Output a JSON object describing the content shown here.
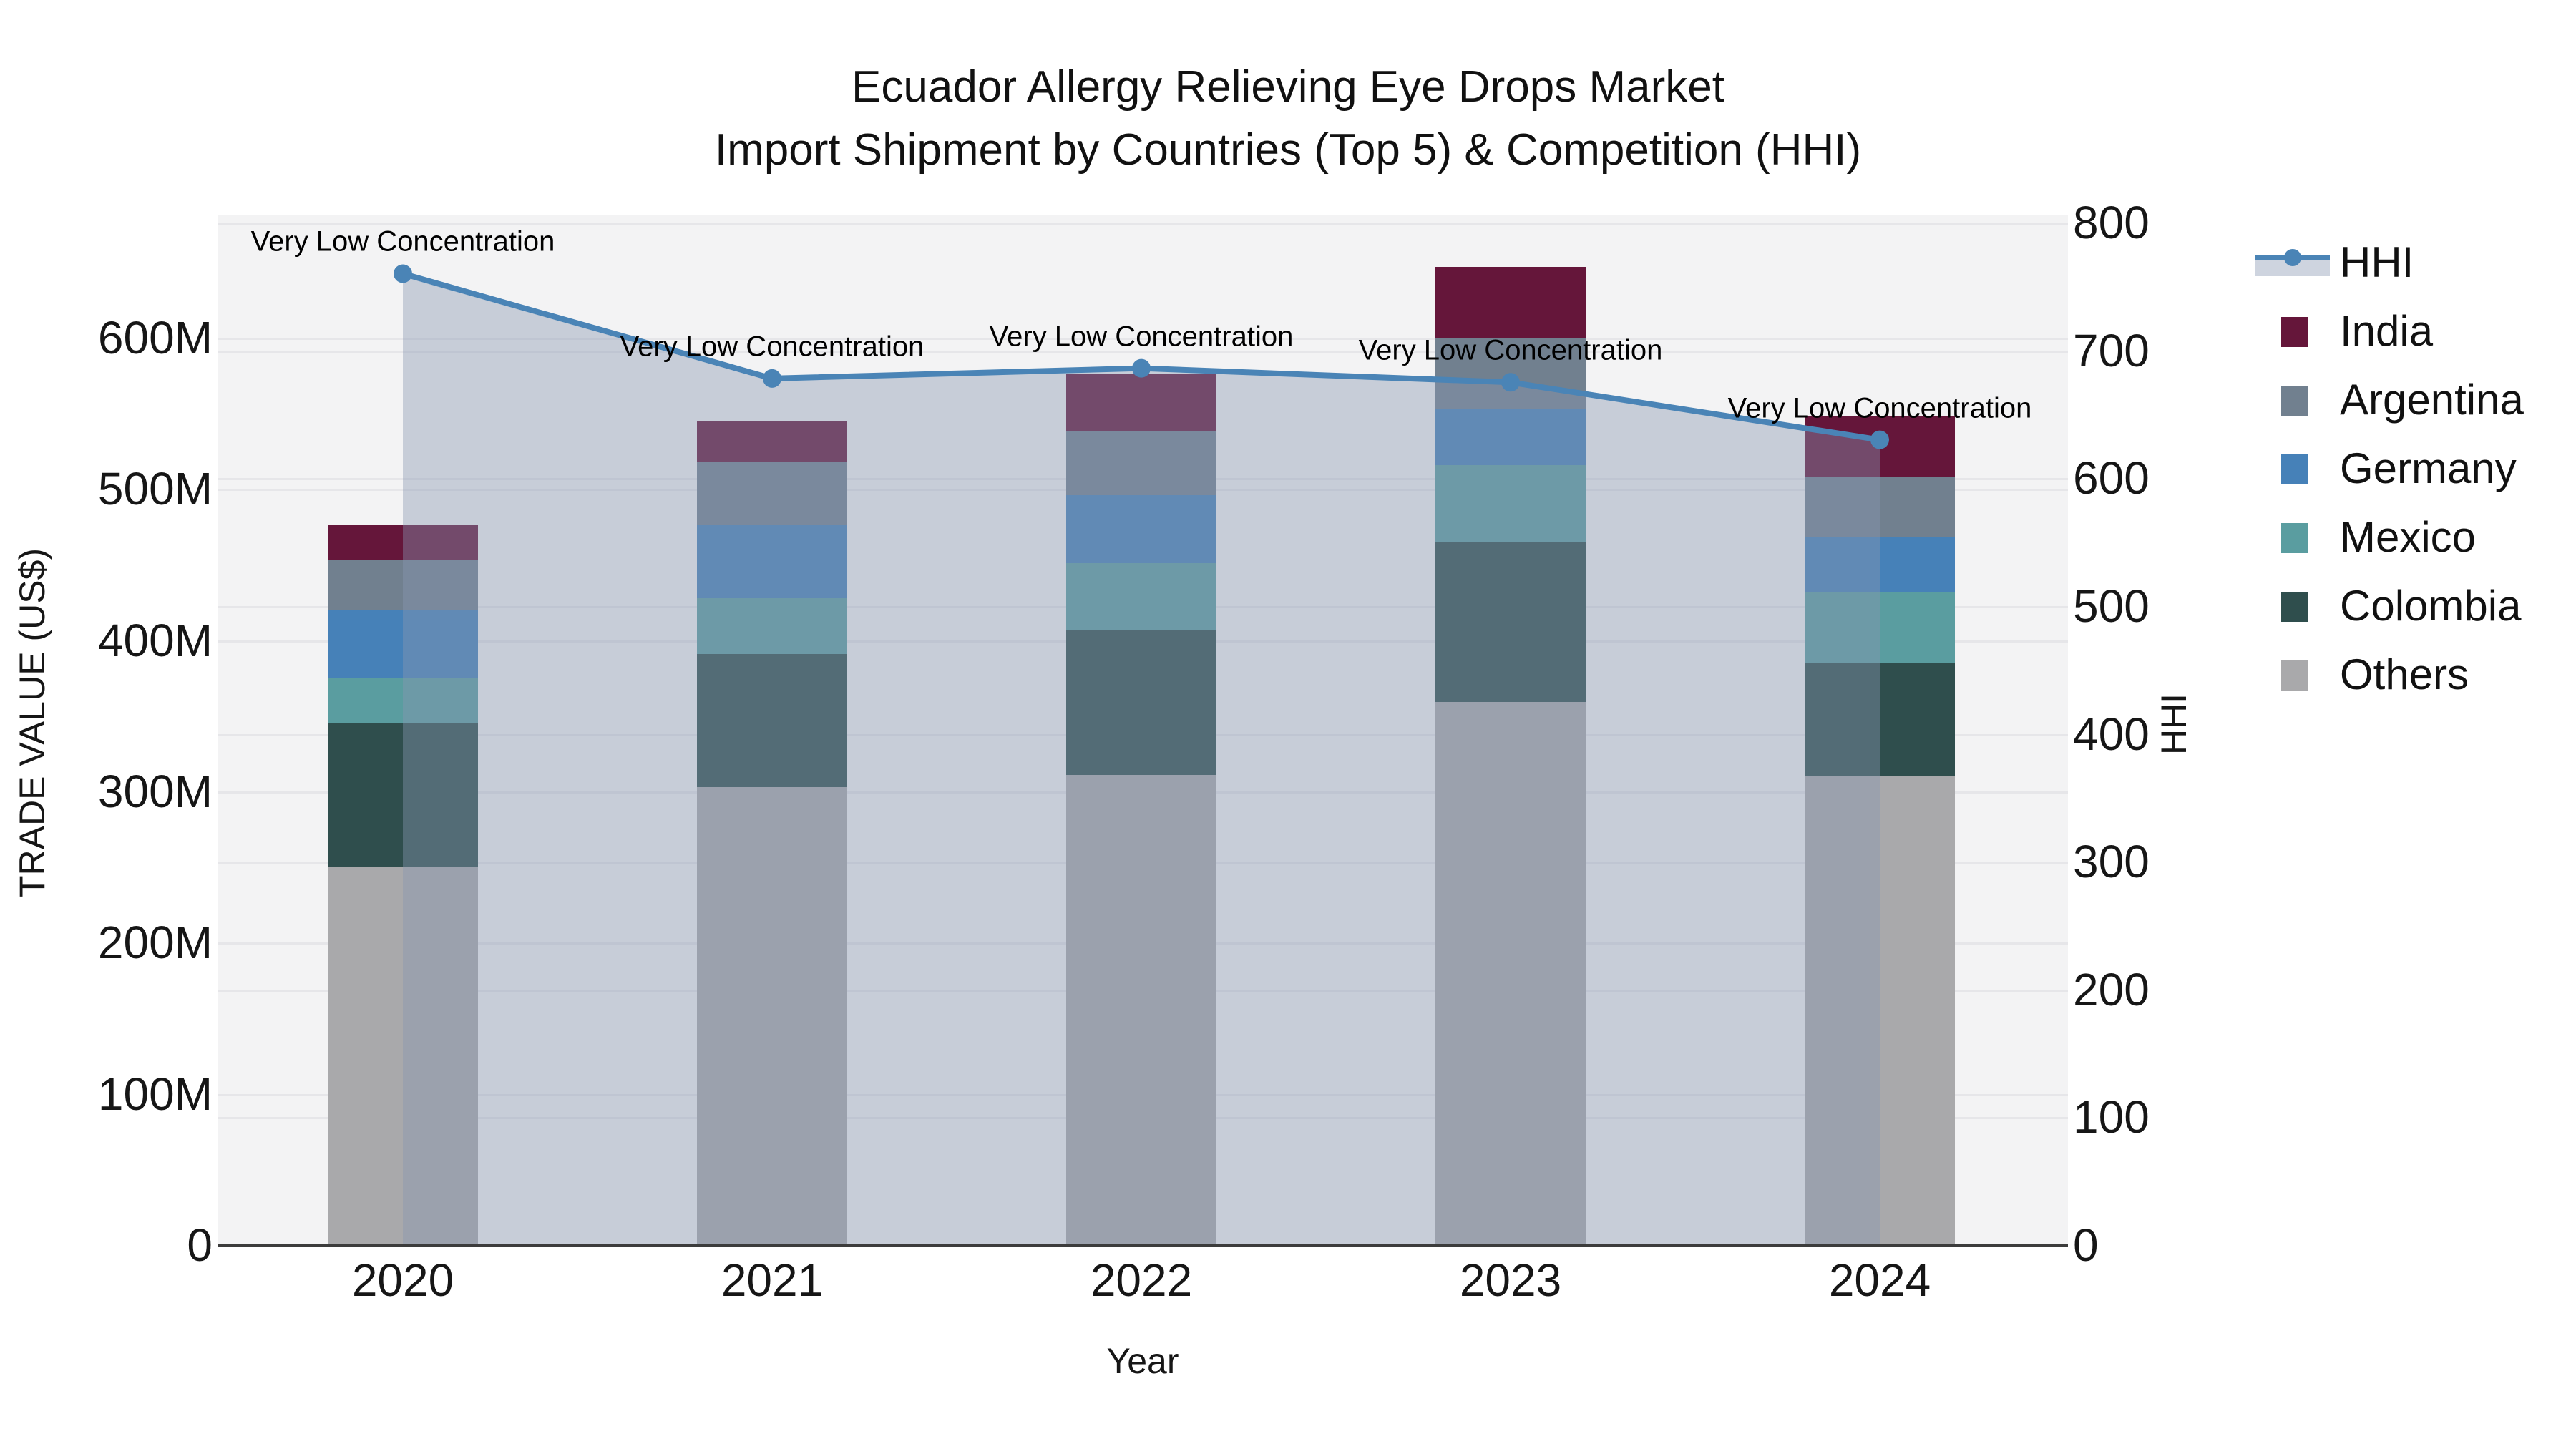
{
  "title": {
    "line1": "Ecuador Allergy Relieving Eye Drops Market",
    "line2": "Import Shipment by Countries (Top 5) & Competition (HHI)"
  },
  "axes": {
    "x": {
      "label": "Year",
      "tick_labels": [
        "2020",
        "2021",
        "2022",
        "2023",
        "2024"
      ]
    },
    "y_left": {
      "label": "TRADE VALUE (US$)",
      "tick_labels": [
        "0",
        "100M",
        "200M",
        "300M",
        "400M",
        "500M",
        "600M"
      ],
      "tick_values": [
        0,
        100,
        200,
        300,
        400,
        500,
        600
      ]
    },
    "y_right": {
      "label": "HHI",
      "tick_labels": [
        "0",
        "100",
        "200",
        "300",
        "400",
        "500",
        "600",
        "700",
        "800"
      ],
      "tick_values": [
        0,
        100,
        200,
        300,
        400,
        500,
        600,
        700,
        800
      ]
    }
  },
  "legend": {
    "position": "right",
    "entries": [
      {
        "label": "HHI",
        "type": "line",
        "color": "#4a84b6"
      },
      {
        "label": "India",
        "type": "patch",
        "color": "#65163a"
      },
      {
        "label": "Argentina",
        "type": "patch",
        "color": "#71808f"
      },
      {
        "label": "Germany",
        "type": "patch",
        "color": "#4681b8"
      },
      {
        "label": "Mexico",
        "type": "patch",
        "color": "#5a9da0"
      },
      {
        "label": "Colombia",
        "type": "patch",
        "color": "#2f4e4d"
      },
      {
        "label": "Others",
        "type": "patch",
        "color": "#a9a9ab"
      }
    ]
  },
  "chart_data": {
    "type": "bar+line",
    "categories": [
      "2020",
      "2021",
      "2022",
      "2023",
      "2024"
    ],
    "bar_unit": "million US$",
    "bar_stack_note": "stacked bottom-to-top: Others, Colombia, Mexico, Germany, Argentina, India",
    "series": [
      {
        "name": "India",
        "type": "bar",
        "color": "#65163a",
        "values": [
          23,
          27,
          38,
          47,
          40
        ]
      },
      {
        "name": "Argentina",
        "type": "bar",
        "color": "#71808f",
        "values": [
          33,
          42,
          42,
          47,
          40
        ]
      },
      {
        "name": "Germany",
        "type": "bar",
        "color": "#4681b8",
        "values": [
          45,
          48,
          45,
          37,
          36
        ]
      },
      {
        "name": "Mexico",
        "type": "bar",
        "color": "#5a9da0",
        "values": [
          30,
          37,
          44,
          51,
          47
        ]
      },
      {
        "name": "Colombia",
        "type": "bar",
        "color": "#2f4e4d",
        "values": [
          95,
          88,
          96,
          106,
          75
        ]
      },
      {
        "name": "Others",
        "type": "bar",
        "color": "#a9a9ab",
        "values": [
          250,
          303,
          311,
          359,
          310
        ]
      }
    ],
    "bar_totals": [
      476,
      545,
      576,
      647,
      548
    ],
    "line_series": {
      "name": "HHI",
      "axis": "right",
      "color": "#4a84b6",
      "area_fill": "rgba(135,150,177,0.41)",
      "values": [
        760,
        678,
        686,
        675,
        630
      ]
    },
    "annotations": [
      {
        "text": "Very Low Concentration",
        "category_index": 0
      },
      {
        "text": "Very Low Concentration",
        "category_index": 1
      },
      {
        "text": "Very Low Concentration",
        "category_index": 2
      },
      {
        "text": "Very Low Concentration",
        "category_index": 3
      },
      {
        "text": "Very Low Concentration",
        "category_index": 4
      }
    ],
    "xlabel": "Year",
    "ylabel_left": "TRADE VALUE (US$)",
    "ylabel_right": "HHI",
    "ylim_left": [
      0,
      681
    ],
    "ylim_right": [
      0,
      806
    ],
    "grid": true,
    "legend_position": "right"
  }
}
